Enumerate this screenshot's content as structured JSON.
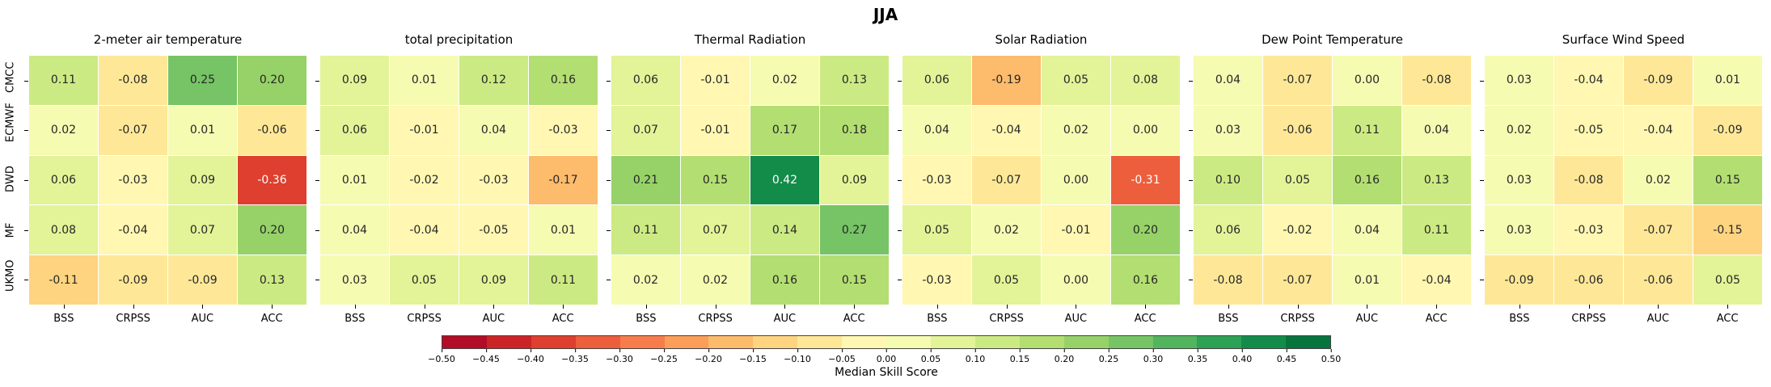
{
  "figure": {
    "title": "JJA",
    "colorbar_label": "Median Skill Score",
    "colormap": "RdYlGn",
    "colorbar_ticks": [
      "−0.50",
      "−0.45",
      "−0.40",
      "−0.35",
      "−0.30",
      "−0.25",
      "−0.20",
      "−0.15",
      "−0.10",
      "−0.05",
      "0.00",
      "0.05",
      "0.10",
      "0.15",
      "0.20",
      "0.25",
      "0.30",
      "0.35",
      "0.40",
      "0.45",
      "0.50"
    ]
  },
  "chart_data": [
    {
      "type": "heatmap",
      "title": "2-meter air temperature",
      "categories_x": [
        "BSS",
        "CRPSS",
        "AUC",
        "ACC"
      ],
      "categories_y": [
        "CMCC",
        "ECMWF",
        "DWD",
        "MF",
        "UKMO"
      ],
      "values": [
        [
          0.11,
          -0.08,
          0.25,
          0.2
        ],
        [
          0.02,
          -0.07,
          0.01,
          -0.06
        ],
        [
          0.06,
          -0.03,
          0.09,
          -0.36
        ],
        [
          0.08,
          -0.04,
          0.07,
          0.2
        ],
        [
          -0.11,
          -0.09,
          -0.09,
          0.13
        ]
      ],
      "vmin": -0.5,
      "vmax": 0.5
    },
    {
      "type": "heatmap",
      "title": "total precipitation",
      "categories_x": [
        "BSS",
        "CRPSS",
        "AUC",
        "ACC"
      ],
      "categories_y": [
        "CMCC",
        "ECMWF",
        "DWD",
        "MF",
        "UKMO"
      ],
      "values": [
        [
          0.09,
          0.01,
          0.12,
          0.16
        ],
        [
          0.06,
          -0.01,
          0.04,
          -0.03
        ],
        [
          0.01,
          -0.02,
          -0.03,
          -0.17
        ],
        [
          0.04,
          -0.04,
          -0.05,
          0.01
        ],
        [
          0.03,
          0.05,
          0.09,
          0.11
        ]
      ],
      "vmin": -0.5,
      "vmax": 0.5
    },
    {
      "type": "heatmap",
      "title": "Thermal Radiation",
      "categories_x": [
        "BSS",
        "CRPSS",
        "AUC",
        "ACC"
      ],
      "categories_y": [
        "CMCC",
        "ECMWF",
        "DWD",
        "MF",
        "UKMO"
      ],
      "values": [
        [
          0.06,
          -0.01,
          0.02,
          0.13
        ],
        [
          0.07,
          -0.01,
          0.17,
          0.18
        ],
        [
          0.21,
          0.15,
          0.42,
          0.09
        ],
        [
          0.11,
          0.07,
          0.14,
          0.27
        ],
        [
          0.02,
          0.02,
          0.16,
          0.15
        ]
      ],
      "vmin": -0.5,
      "vmax": 0.5
    },
    {
      "type": "heatmap",
      "title": "Solar Radiation",
      "categories_x": [
        "BSS",
        "CRPSS",
        "AUC",
        "ACC"
      ],
      "categories_y": [
        "CMCC",
        "ECMWF",
        "DWD",
        "MF",
        "UKMO"
      ],
      "values": [
        [
          0.06,
          -0.19,
          0.05,
          0.08
        ],
        [
          0.04,
          -0.04,
          0.02,
          0.0
        ],
        [
          -0.03,
          -0.07,
          -0.0,
          -0.31
        ],
        [
          0.05,
          0.02,
          -0.01,
          0.2
        ],
        [
          -0.03,
          0.05,
          0.0,
          0.16
        ]
      ],
      "vmin": -0.5,
      "vmax": 0.5
    },
    {
      "type": "heatmap",
      "title": "Dew Point Temperature",
      "categories_x": [
        "BSS",
        "CRPSS",
        "AUC",
        "ACC"
      ],
      "categories_y": [
        "CMCC",
        "ECMWF",
        "DWD",
        "MF",
        "UKMO"
      ],
      "values": [
        [
          0.04,
          -0.07,
          0.0,
          -0.08
        ],
        [
          0.03,
          -0.06,
          0.11,
          0.04
        ],
        [
          0.1,
          0.05,
          0.16,
          0.13
        ],
        [
          0.06,
          -0.02,
          0.04,
          0.11
        ],
        [
          -0.08,
          -0.07,
          0.01,
          -0.04
        ]
      ],
      "vmin": -0.5,
      "vmax": 0.5
    },
    {
      "type": "heatmap",
      "title": "Surface Wind Speed",
      "categories_x": [
        "BSS",
        "CRPSS",
        "AUC",
        "ACC"
      ],
      "categories_y": [
        "CMCC",
        "ECMWF",
        "DWD",
        "MF",
        "UKMO"
      ],
      "values": [
        [
          0.03,
          -0.04,
          -0.09,
          0.01
        ],
        [
          0.02,
          -0.05,
          -0.04,
          -0.09
        ],
        [
          0.03,
          -0.08,
          0.02,
          0.15
        ],
        [
          0.03,
          -0.03,
          -0.07,
          -0.15
        ],
        [
          -0.09,
          -0.06,
          -0.06,
          0.05
        ]
      ],
      "vmin": -0.5,
      "vmax": 0.5
    }
  ]
}
